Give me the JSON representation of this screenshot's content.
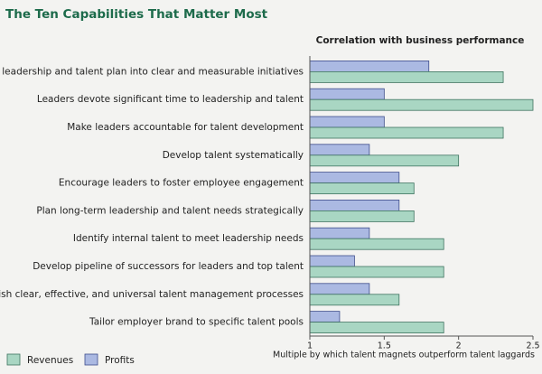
{
  "chart_data": {
    "type": "barh",
    "title": "The Ten Capabilities That Matter Most",
    "subtitle": "Correlation with business performance",
    "x_label": "Multiple by which talent magnets outperform talent laggards",
    "categories": [
      "Translate leadership and talent plan into clear and measurable initiatives",
      "Leaders devote significant time to leadership and talent",
      "Make leaders accountable for talent development",
      "Develop talent systematically",
      "Encourage leaders to foster employee engagement",
      "Plan long-term leadership and talent needs strategically",
      "Identify internal talent to meet leadership needs",
      "Develop pipeline of successors for leaders and top talent",
      "Establish clear, effective, and universal talent management processes",
      "Tailor employer brand to specific talent pools"
    ],
    "series": [
      {
        "name": "Revenues",
        "color": "#a9d6c3",
        "values": [
          2.3,
          2.5,
          2.3,
          2.0,
          1.7,
          1.7,
          1.9,
          1.9,
          1.6,
          1.9
        ]
      },
      {
        "name": "Profits",
        "color": "#abb9e2",
        "values": [
          1.8,
          1.5,
          1.5,
          1.4,
          1.6,
          1.6,
          1.4,
          1.3,
          1.4,
          1.2
        ]
      }
    ],
    "xlim": [
      1,
      2.5
    ],
    "xticks": [
      1,
      1.5,
      2,
      2.5
    ]
  }
}
